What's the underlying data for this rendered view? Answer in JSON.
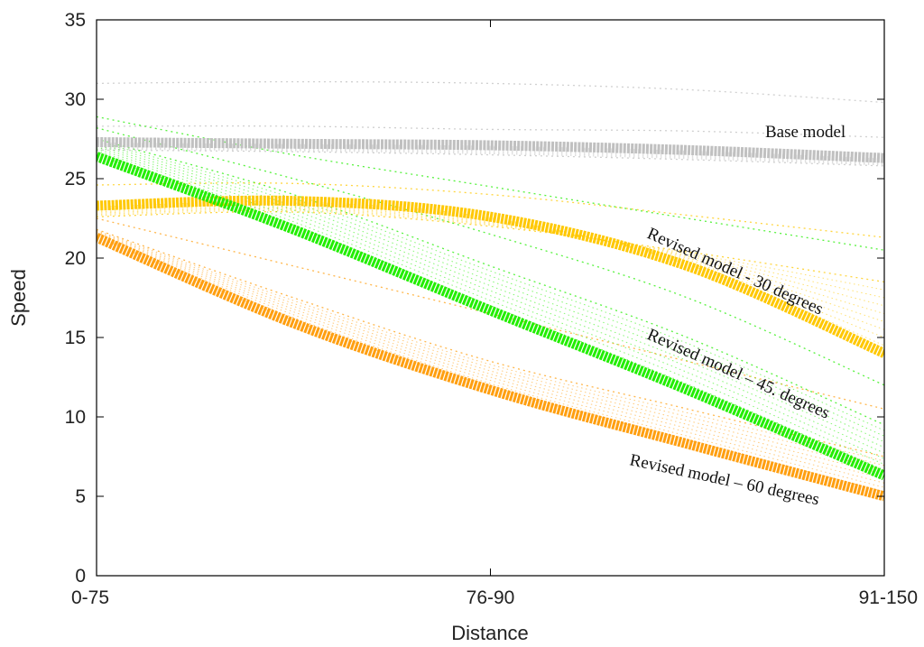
{
  "chart_data": {
    "type": "line",
    "title": "",
    "xlabel": "Distance",
    "ylabel": "Speed",
    "categories": [
      "0-75",
      "76-90",
      "91-150"
    ],
    "ylim": [
      0,
      35
    ],
    "yticks": [
      0,
      5,
      10,
      15,
      20,
      25,
      30,
      35
    ],
    "grid": false,
    "legend": "inline labels on lines",
    "series": [
      {
        "name": "Base model",
        "color": "#c0c0c0",
        "x": [
          0,
          0.25,
          0.5,
          0.75,
          1
        ],
        "values": [
          27.3,
          27.2,
          27.1,
          26.8,
          26.3
        ],
        "spread": [
          [
            31.0,
            31.1,
            31.0,
            30.6,
            29.8
          ],
          [
            28.3,
            28.3,
            28.1,
            28.0,
            27.6
          ],
          [
            26.8,
            26.7,
            26.5,
            26.2,
            25.8
          ]
        ]
      },
      {
        "name": "Revised model - 30 degrees",
        "color": "#ffc800",
        "x": [
          0,
          0.25,
          0.5,
          0.75,
          1
        ],
        "values": [
          23.3,
          23.6,
          22.6,
          19.5,
          14.0
        ],
        "spread": [
          [
            24.6,
            24.7,
            24.0,
            22.7,
            21.3
          ],
          [
            22.6,
            22.9,
            22.0,
            20.4,
            18.5
          ]
        ]
      },
      {
        "name": "Revised model – 45. degrees",
        "color": "#22ee00",
        "x": [
          0,
          0.25,
          0.5,
          0.75,
          1
        ],
        "values": [
          26.4,
          21.8,
          16.7,
          11.7,
          6.3
        ],
        "spread": [
          [
            28.9,
            26.5,
            24.5,
            22.5,
            20.5
          ],
          [
            28.2,
            25.0,
            21.5,
            17.5,
            12.0
          ],
          [
            27.5,
            24.0,
            19.5,
            15.0,
            9.5
          ]
        ]
      },
      {
        "name": "Revised model – 60 degrees",
        "color": "#ff9f10",
        "x": [
          0,
          0.25,
          0.5,
          0.75,
          1
        ],
        "values": [
          21.3,
          15.9,
          11.7,
          8.3,
          5.0
        ],
        "spread": [
          [
            22.5,
            19.5,
            16.5,
            13.5,
            10.5
          ],
          [
            21.8,
            17.5,
            13.5,
            10.5,
            7.5
          ]
        ]
      }
    ]
  }
}
